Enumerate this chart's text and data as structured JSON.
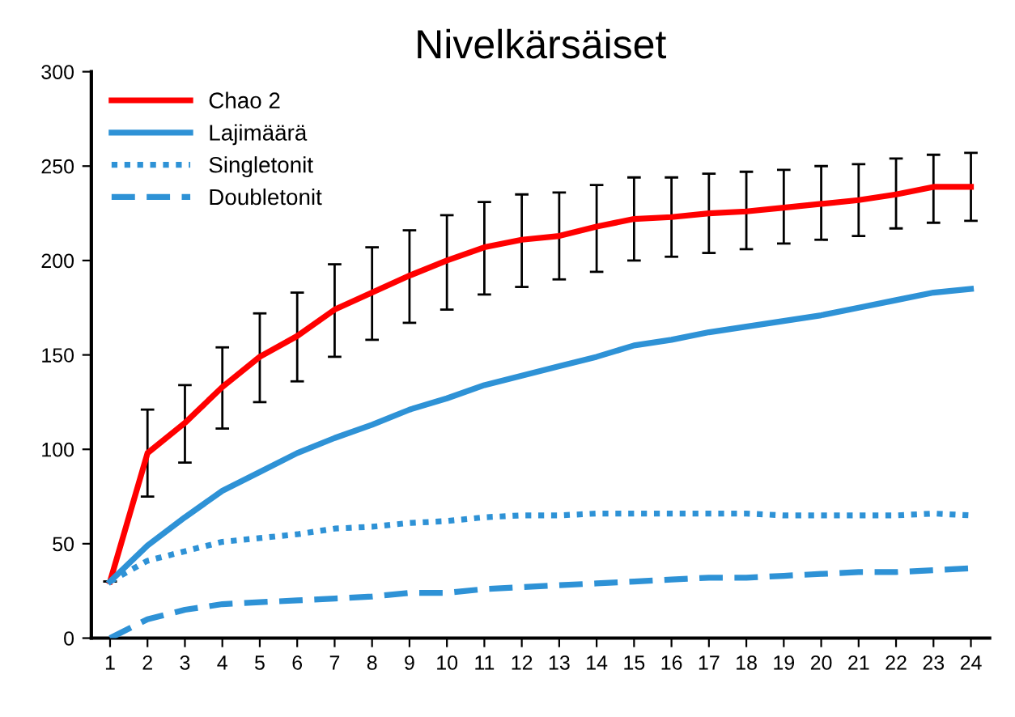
{
  "chart_data": {
    "type": "line",
    "title": "Nivelkärsäiset",
    "categories": [
      "1",
      "2",
      "3",
      "4",
      "5",
      "6",
      "7",
      "8",
      "9",
      "10",
      "11",
      "12",
      "13",
      "14",
      "15",
      "16",
      "17",
      "18",
      "19",
      "20",
      "21",
      "22",
      "23",
      "24"
    ],
    "ylim": [
      0,
      300
    ],
    "yticks": [
      0,
      50,
      100,
      150,
      200,
      250,
      300
    ],
    "grid": false,
    "legend": "top left",
    "marker": "none",
    "series": [
      {
        "name": "Chao 2",
        "color": "#ff0000",
        "line_style": "solid",
        "values": [
          30,
          98,
          114,
          133,
          149,
          160,
          174,
          183,
          192,
          200,
          207,
          211,
          213,
          218,
          222,
          223,
          225,
          226,
          228,
          230,
          232,
          235,
          239,
          239
        ],
        "errors": [
          [
            30,
            30
          ],
          [
            75,
            121
          ],
          [
            93,
            134
          ],
          [
            111,
            154
          ],
          [
            125,
            172
          ],
          [
            136,
            183
          ],
          [
            149,
            198
          ],
          [
            158,
            207
          ],
          [
            167,
            216
          ],
          [
            174,
            224
          ],
          [
            182,
            231
          ],
          [
            186,
            235
          ],
          [
            190,
            236
          ],
          [
            194,
            240
          ],
          [
            200,
            244
          ],
          [
            202,
            244
          ],
          [
            204,
            246
          ],
          [
            206,
            247
          ],
          [
            209,
            248
          ],
          [
            211,
            250
          ],
          [
            213,
            251
          ],
          [
            217,
            254
          ],
          [
            220,
            256
          ],
          [
            221,
            257
          ]
        ]
      },
      {
        "name": "Lajimäärä",
        "color": "#2e92d6",
        "line_style": "solid",
        "values": [
          30,
          49,
          64,
          78,
          88,
          98,
          106,
          113,
          121,
          127,
          134,
          139,
          144,
          149,
          155,
          158,
          162,
          165,
          168,
          171,
          175,
          179,
          183,
          185
        ]
      },
      {
        "name": "Singletonit",
        "color": "#2e92d6",
        "line_style": "dotted",
        "values": [
          30,
          41,
          46,
          51,
          53,
          55,
          58,
          59,
          61,
          62,
          64,
          65,
          65,
          66,
          66,
          66,
          66,
          66,
          65,
          65,
          65,
          65,
          66,
          65
        ]
      },
      {
        "name": "Doubletonit",
        "color": "#2e92d6",
        "line_style": "dashed",
        "values": [
          0,
          10,
          15,
          18,
          19,
          20,
          21,
          22,
          24,
          24,
          26,
          27,
          28,
          29,
          30,
          31,
          32,
          32,
          33,
          34,
          35,
          35,
          36,
          37
        ]
      }
    ]
  }
}
